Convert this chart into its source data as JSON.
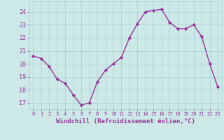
{
  "x": [
    0,
    1,
    2,
    3,
    4,
    5,
    6,
    7,
    8,
    9,
    10,
    11,
    12,
    13,
    14,
    15,
    16,
    17,
    18,
    19,
    20,
    21,
    22,
    23
  ],
  "y": [
    20.6,
    20.4,
    19.8,
    18.8,
    18.5,
    17.6,
    16.8,
    17.0,
    18.6,
    19.5,
    20.0,
    20.5,
    22.0,
    23.1,
    24.0,
    24.1,
    24.2,
    23.2,
    22.7,
    22.7,
    23.0,
    22.1,
    20.0,
    18.2
  ],
  "line_color": "#993399",
  "marker": "D",
  "marker_size": 2.2,
  "linewidth": 1.0,
  "xlabel": "Windchill (Refroidissement éolien,°C)",
  "xlabel_fontsize": 6.5,
  "ylim": [
    16.5,
    24.8
  ],
  "yticks": [
    17,
    18,
    19,
    20,
    21,
    22,
    23,
    24
  ],
  "xticks": [
    0,
    1,
    2,
    3,
    4,
    5,
    6,
    7,
    8,
    9,
    10,
    11,
    12,
    13,
    14,
    15,
    16,
    17,
    18,
    19,
    20,
    21,
    22,
    23
  ],
  "xtick_labels": [
    "0",
    "1",
    "2",
    "3",
    "4",
    "5",
    "6",
    "7",
    "8",
    "9",
    "10",
    "11",
    "12",
    "13",
    "14",
    "15",
    "16",
    "17",
    "18",
    "19",
    "20",
    "21",
    "22",
    "23"
  ],
  "background_color": "#cce9e8",
  "grid_color": "#aad4d3",
  "tick_color": "#993399",
  "label_color": "#993399",
  "xtick_fontsize": 5.0,
  "ytick_fontsize": 6.0
}
